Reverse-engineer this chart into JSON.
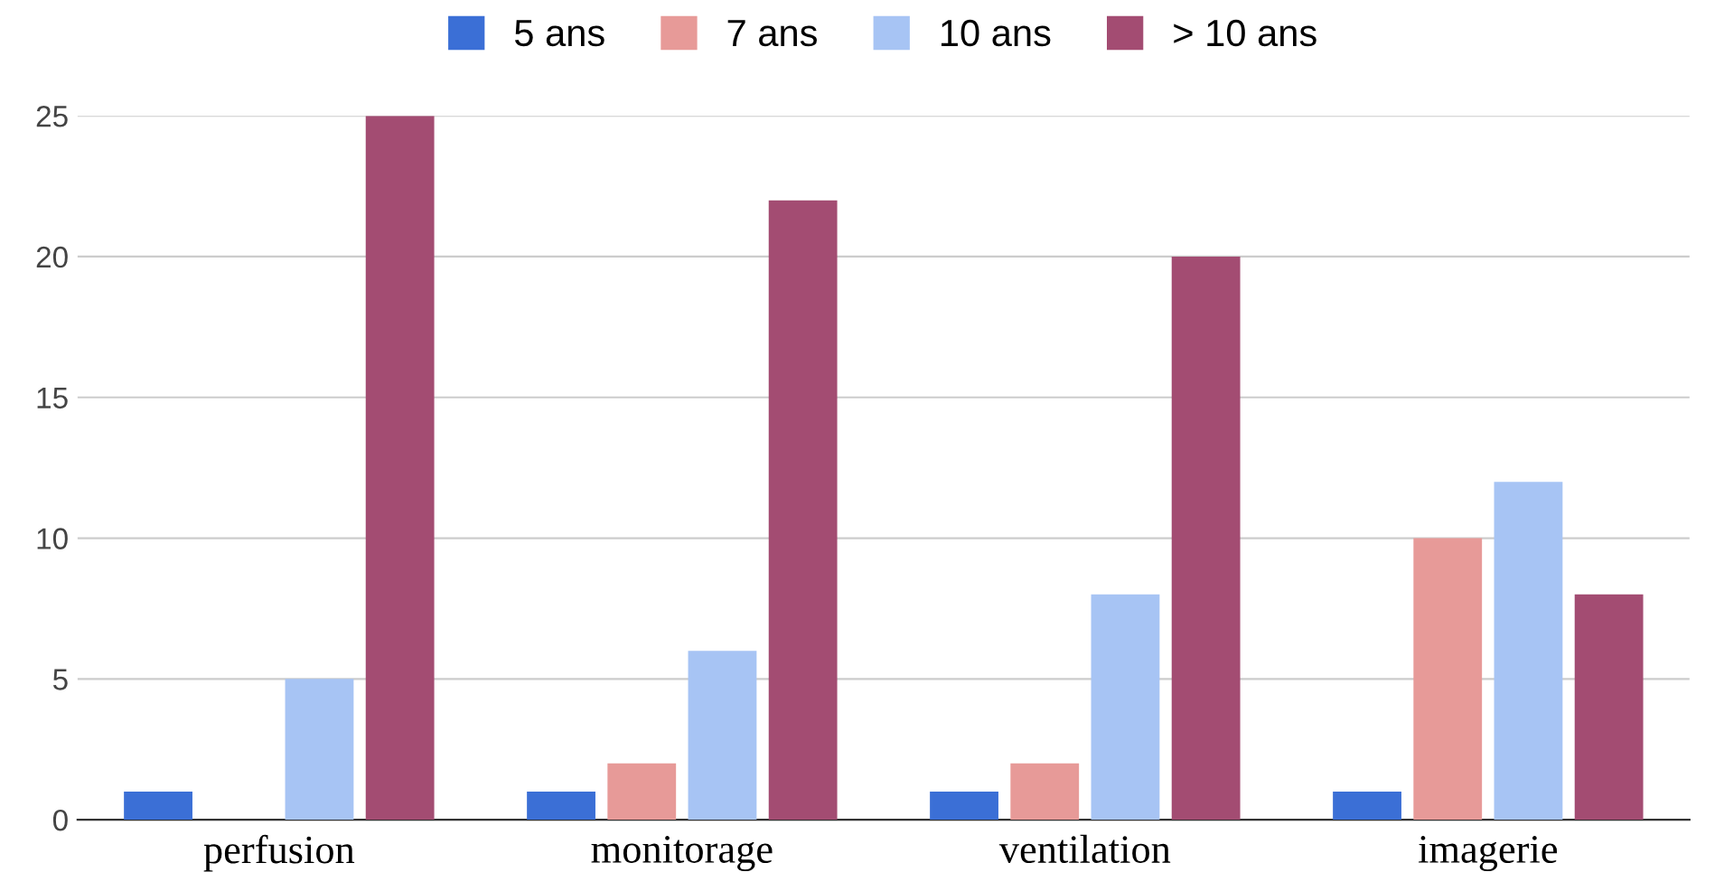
{
  "chart_data": {
    "type": "bar",
    "categories": [
      "perfusion",
      "monitorage",
      "ventilation",
      "imagerie"
    ],
    "series": [
      {
        "name": "5 ans",
        "color": "#3b6fd6",
        "values": [
          1,
          1,
          1,
          1
        ]
      },
      {
        "name": "7 ans",
        "color": "#e79a98",
        "values": [
          0,
          2,
          2,
          10
        ]
      },
      {
        "name": "10 ans",
        "color": "#a7c4f4",
        "values": [
          5,
          6,
          8,
          12
        ]
      },
      {
        "name": "> 10 ans",
        "color": "#a34c72",
        "values": [
          25,
          22,
          20,
          8
        ]
      }
    ],
    "ylim": [
      0,
      25
    ],
    "yticks": [
      0,
      5,
      10,
      15,
      20,
      25
    ],
    "grid": "y",
    "legend": "top"
  }
}
